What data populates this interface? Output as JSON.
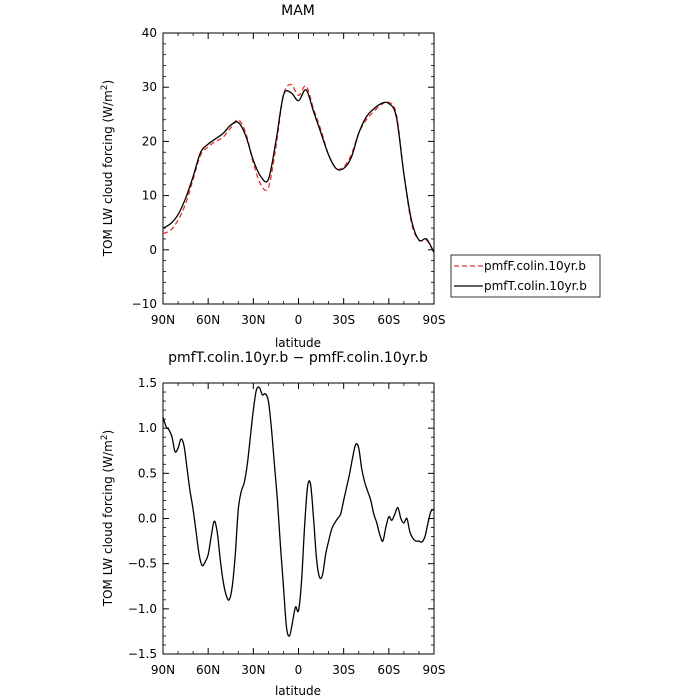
{
  "chart_data": [
    {
      "type": "line",
      "title": "MAM",
      "xlabel": "latitude",
      "ylabel": "TOM LW cloud forcing (W/m",
      "ylabel_sup": "2",
      "ylabel_close": ")",
      "xlim": [
        90,
        -90
      ],
      "ylim": [
        -10,
        40
      ],
      "x_ticks": [
        90,
        60,
        30,
        0,
        -30,
        -60,
        -90
      ],
      "x_tick_labels": [
        "90N",
        "60N",
        "30N",
        "0",
        "30S",
        "60S",
        "90S"
      ],
      "y_ticks": [
        -10,
        0,
        10,
        20,
        30,
        40
      ],
      "y_tick_labels": [
        "−10",
        "0",
        "10",
        "20",
        "30",
        "40"
      ],
      "legend": "outside-right",
      "series": [
        {
          "name": "pmfF.colin.10yr.b",
          "color": "#e8322c",
          "dash": "dashed",
          "x": [
            90,
            85,
            80,
            75,
            70,
            65,
            60,
            55,
            50,
            45,
            40,
            35,
            30,
            25,
            20,
            15,
            10,
            5,
            0,
            -5,
            -10,
            -15,
            -20,
            -25,
            -30,
            -35,
            -40,
            -45,
            -50,
            -55,
            -60,
            -65,
            -70,
            -75,
            -80,
            -85,
            -90
          ],
          "y": [
            3.0,
            3.6,
            5.5,
            8.5,
            13.0,
            17.5,
            19.0,
            20.0,
            20.8,
            22.5,
            24.0,
            21.5,
            16.0,
            12.0,
            11.5,
            19.0,
            28.5,
            30.5,
            28.5,
            30.2,
            26.0,
            22.0,
            17.5,
            15.0,
            15.3,
            17.5,
            21.5,
            24.0,
            25.5,
            26.8,
            27.2,
            25.0,
            14.0,
            5.0,
            1.8,
            1.8,
            -0.5
          ]
        },
        {
          "name": "pmfT.colin.10yr.b",
          "color": "#000000",
          "dash": "solid",
          "x": [
            90,
            85,
            80,
            75,
            70,
            65,
            60,
            55,
            50,
            45,
            40,
            35,
            30,
            25,
            20,
            15,
            10,
            5,
            0,
            -5,
            -10,
            -15,
            -20,
            -25,
            -30,
            -35,
            -40,
            -45,
            -50,
            -55,
            -60,
            -65,
            -70,
            -75,
            -80,
            -85,
            -90
          ],
          "y": [
            4.0,
            4.8,
            6.5,
            9.5,
            13.5,
            18.0,
            19.5,
            20.5,
            21.5,
            23.0,
            23.5,
            21.0,
            16.5,
            13.5,
            13.0,
            20.0,
            28.5,
            29.0,
            27.5,
            29.5,
            25.5,
            21.5,
            17.5,
            15.0,
            15.0,
            17.0,
            21.5,
            24.5,
            26.0,
            27.0,
            27.0,
            24.5,
            14.0,
            5.5,
            1.8,
            2.0,
            -0.5
          ]
        }
      ]
    },
    {
      "type": "line",
      "title": "pmfT.colin.10yr.b − pmfF.colin.10yr.b",
      "xlabel": "latitude",
      "ylabel": "TOM LW cloud forcing (W/m",
      "ylabel_sup": "2",
      "ylabel_close": ")",
      "xlim": [
        90,
        -90
      ],
      "ylim": [
        -1.5,
        1.5
      ],
      "x_ticks": [
        90,
        60,
        30,
        0,
        -30,
        -60,
        -90
      ],
      "x_tick_labels": [
        "90N",
        "60N",
        "30N",
        "0",
        "30S",
        "60S",
        "90S"
      ],
      "y_ticks": [
        -1.5,
        -1.0,
        -0.5,
        0.0,
        0.5,
        1.0,
        1.5
      ],
      "y_tick_labels": [
        "−1.5",
        "−1.0",
        "−0.5",
        "0.0",
        "0.5",
        "1.0",
        "1.5"
      ],
      "legend": "none",
      "series": [
        {
          "color": "#000000",
          "dash": "solid",
          "x": [
            90,
            88,
            86,
            84,
            82,
            80,
            78,
            76,
            74,
            72,
            70,
            68,
            66,
            64,
            62,
            60,
            58,
            56,
            54,
            52,
            50,
            48,
            46,
            44,
            42,
            40,
            38,
            36,
            34,
            32,
            30,
            28,
            26,
            24,
            22,
            20,
            18,
            16,
            14,
            12,
            10,
            8,
            6,
            4,
            2,
            0,
            -2,
            -4,
            -6,
            -8,
            -10,
            -12,
            -14,
            -16,
            -18,
            -20,
            -22,
            -24,
            -26,
            -28,
            -30,
            -32,
            -34,
            -36,
            -38,
            -40,
            -42,
            -44,
            -46,
            -48,
            -50,
            -52,
            -54,
            -56,
            -58,
            -60,
            -62,
            -64,
            -66,
            -68,
            -70,
            -72,
            -74,
            -76,
            -78,
            -80,
            -82,
            -84,
            -86,
            -88,
            -90
          ],
          "y": [
            1.12,
            1.02,
            0.98,
            0.9,
            0.74,
            0.78,
            0.88,
            0.8,
            0.55,
            0.3,
            0.1,
            -0.15,
            -0.4,
            -0.52,
            -0.48,
            -0.4,
            -0.2,
            -0.03,
            -0.15,
            -0.45,
            -0.7,
            -0.85,
            -0.9,
            -0.75,
            -0.4,
            0.1,
            0.3,
            0.4,
            0.6,
            0.9,
            1.2,
            1.42,
            1.45,
            1.37,
            1.38,
            1.3,
            1.0,
            0.6,
            0.2,
            -0.3,
            -0.75,
            -1.2,
            -1.3,
            -1.15,
            -0.98,
            -1.02,
            -0.7,
            -0.1,
            0.35,
            0.38,
            0.0,
            -0.45,
            -0.65,
            -0.62,
            -0.4,
            -0.25,
            -0.12,
            -0.05,
            0.0,
            0.05,
            0.2,
            0.35,
            0.5,
            0.68,
            0.82,
            0.78,
            0.55,
            0.4,
            0.3,
            0.2,
            0.05,
            -0.05,
            -0.18,
            -0.25,
            -0.1,
            0.02,
            -0.02,
            0.05,
            0.12,
            0.0,
            -0.05,
            0.0,
            -0.15,
            -0.22,
            -0.25,
            -0.25,
            -0.26,
            -0.2,
            -0.05,
            0.08,
            0.1
          ]
        }
      ]
    }
  ]
}
